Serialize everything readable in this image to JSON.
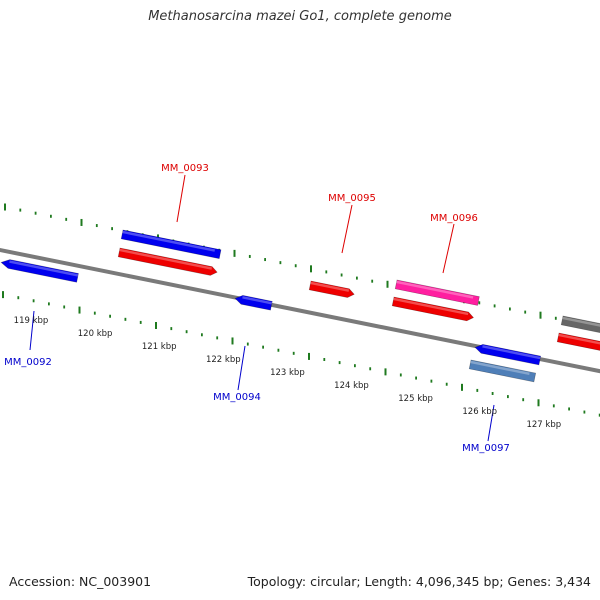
{
  "title": "Methanosarcina mazei Go1, complete genome",
  "accession": "Accession: NC_003901",
  "summary": "Topology: circular; Length: 4,096,345 bp; Genes: 3,434",
  "colors": {
    "backbone": "#7a7a7a",
    "tick": "#1f7a1f",
    "gene_blue": "#0000ee",
    "gene_red": "#ee0000",
    "gene_magenta": "#ff1fa0",
    "gene_steel": "#4f7fb8",
    "gene_gray": "#666666",
    "label_blue": "#0000cc",
    "label_red": "#dd0000",
    "tick_label": "#222222"
  },
  "kbp_labels": [
    "119 kbp",
    "120 kbp",
    "121 kbp",
    "122 kbp",
    "123 kbp",
    "124 kbp",
    "125 kbp",
    "126 kbp",
    "127 kbp"
  ],
  "gene_labels": [
    {
      "id": "MM_0092",
      "strand": "minus"
    },
    {
      "id": "MM_0093",
      "strand": "plus"
    },
    {
      "id": "MM_0094",
      "strand": "minus"
    },
    {
      "id": "MM_0095",
      "strand": "plus"
    },
    {
      "id": "MM_0096",
      "strand": "plus"
    },
    {
      "id": "MM_0097",
      "strand": "minus"
    }
  ]
}
